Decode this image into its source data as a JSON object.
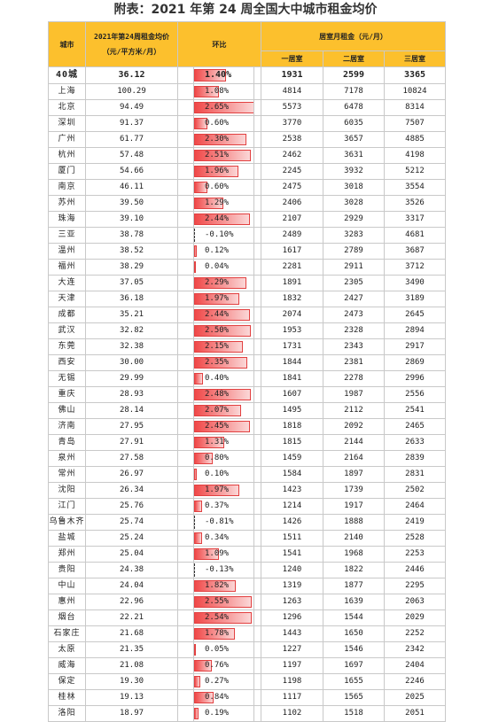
{
  "title": "附表：2021 年第 24 周全国大中城市租金均价",
  "header": {
    "city": "城市",
    "avg_line1": "2021年第24周租金均价",
    "avg_line2": "（元/平方米/月）",
    "change": "环比",
    "room_rent": "居室月租金（元/月）",
    "one_room": "一居室",
    "two_room": "二居室",
    "three_room": "三居室"
  },
  "colors": {
    "header_bg": "#fcc02d",
    "positive_bar": "#f04848",
    "negative_bar": "#f0b000",
    "grid": "#c9c9c9"
  },
  "summary": {
    "city": "40城",
    "avg": "36.12",
    "change": "1.40%",
    "change_value": 1.4,
    "one": "1931",
    "two": "2599",
    "three": "3365"
  },
  "rows": [
    {
      "city": "上海",
      "avg": "100.29",
      "change": "1.08%",
      "change_value": 1.08,
      "one": "4814",
      "two": "7178",
      "three": "10824"
    },
    {
      "city": "北京",
      "avg": "94.49",
      "change": "2.65%",
      "change_value": 2.65,
      "one": "5573",
      "two": "6478",
      "three": "8314"
    },
    {
      "city": "深圳",
      "avg": "91.37",
      "change": "0.60%",
      "change_value": 0.6,
      "one": "3770",
      "two": "6035",
      "three": "7507"
    },
    {
      "city": "广州",
      "avg": "61.77",
      "change": "2.30%",
      "change_value": 2.3,
      "one": "2538",
      "two": "3657",
      "three": "4885"
    },
    {
      "city": "杭州",
      "avg": "57.48",
      "change": "2.51%",
      "change_value": 2.51,
      "one": "2462",
      "two": "3631",
      "three": "4198"
    },
    {
      "city": "厦门",
      "avg": "54.66",
      "change": "1.96%",
      "change_value": 1.96,
      "one": "2245",
      "two": "3932",
      "three": "5212"
    },
    {
      "city": "南京",
      "avg": "46.11",
      "change": "0.60%",
      "change_value": 0.6,
      "one": "2475",
      "two": "3018",
      "three": "3554"
    },
    {
      "city": "苏州",
      "avg": "39.50",
      "change": "1.29%",
      "change_value": 1.29,
      "one": "2406",
      "two": "3028",
      "three": "3526"
    },
    {
      "city": "珠海",
      "avg": "39.10",
      "change": "2.44%",
      "change_value": 2.44,
      "one": "2107",
      "two": "2929",
      "three": "3317"
    },
    {
      "city": "三亚",
      "avg": "38.78",
      "change": "-0.10%",
      "change_value": -0.1,
      "one": "2489",
      "two": "3283",
      "three": "4681"
    },
    {
      "city": "温州",
      "avg": "38.52",
      "change": "0.12%",
      "change_value": 0.12,
      "one": "1617",
      "two": "2789",
      "three": "3687"
    },
    {
      "city": "福州",
      "avg": "38.29",
      "change": "0.04%",
      "change_value": 0.04,
      "one": "2281",
      "two": "2911",
      "three": "3712"
    },
    {
      "city": "大连",
      "avg": "37.05",
      "change": "2.29%",
      "change_value": 2.29,
      "one": "1891",
      "two": "2305",
      "three": "3490"
    },
    {
      "city": "天津",
      "avg": "36.18",
      "change": "1.97%",
      "change_value": 1.97,
      "one": "1832",
      "two": "2427",
      "three": "3189"
    },
    {
      "city": "成都",
      "avg": "35.21",
      "change": "2.44%",
      "change_value": 2.44,
      "one": "2074",
      "two": "2473",
      "three": "2645"
    },
    {
      "city": "武汉",
      "avg": "32.82",
      "change": "2.50%",
      "change_value": 2.5,
      "one": "1953",
      "two": "2328",
      "three": "2894"
    },
    {
      "city": "东莞",
      "avg": "32.38",
      "change": "2.15%",
      "change_value": 2.15,
      "one": "1731",
      "two": "2343",
      "three": "2917"
    },
    {
      "city": "西安",
      "avg": "30.00",
      "change": "2.35%",
      "change_value": 2.35,
      "one": "1844",
      "two": "2381",
      "three": "2869"
    },
    {
      "city": "无锡",
      "avg": "29.99",
      "change": "0.40%",
      "change_value": 0.4,
      "one": "1841",
      "two": "2278",
      "three": "2996"
    },
    {
      "city": "重庆",
      "avg": "28.93",
      "change": "2.48%",
      "change_value": 2.48,
      "one": "1607",
      "two": "1987",
      "three": "2556"
    },
    {
      "city": "佛山",
      "avg": "28.14",
      "change": "2.07%",
      "change_value": 2.07,
      "one": "1495",
      "two": "2112",
      "three": "2541"
    },
    {
      "city": "济南",
      "avg": "27.95",
      "change": "2.45%",
      "change_value": 2.45,
      "one": "1818",
      "two": "2092",
      "three": "2465"
    },
    {
      "city": "青岛",
      "avg": "27.91",
      "change": "1.31%",
      "change_value": 1.31,
      "one": "1815",
      "two": "2144",
      "three": "2633"
    },
    {
      "city": "泉州",
      "avg": "27.58",
      "change": "0.80%",
      "change_value": 0.8,
      "one": "1459",
      "two": "2164",
      "three": "2839"
    },
    {
      "city": "常州",
      "avg": "26.97",
      "change": "0.10%",
      "change_value": 0.1,
      "one": "1584",
      "two": "1897",
      "three": "2831"
    },
    {
      "city": "沈阳",
      "avg": "26.34",
      "change": "1.97%",
      "change_value": 1.97,
      "one": "1423",
      "two": "1739",
      "three": "2502"
    },
    {
      "city": "江门",
      "avg": "25.76",
      "change": "0.37%",
      "change_value": 0.37,
      "one": "1214",
      "two": "1917",
      "three": "2464"
    },
    {
      "city": "乌鲁木齐",
      "avg": "25.74",
      "change": "-0.81%",
      "change_value": -0.81,
      "one": "1426",
      "two": "1888",
      "three": "2419"
    },
    {
      "city": "盐城",
      "avg": "25.24",
      "change": "0.34%",
      "change_value": 0.34,
      "one": "1511",
      "two": "2140",
      "three": "2528"
    },
    {
      "city": "郑州",
      "avg": "25.04",
      "change": "1.09%",
      "change_value": 1.09,
      "one": "1541",
      "two": "1968",
      "three": "2253"
    },
    {
      "city": "贵阳",
      "avg": "24.38",
      "change": "-0.13%",
      "change_value": -0.13,
      "one": "1240",
      "two": "1822",
      "three": "2446"
    },
    {
      "city": "中山",
      "avg": "24.04",
      "change": "1.82%",
      "change_value": 1.82,
      "one": "1319",
      "two": "1877",
      "three": "2295"
    },
    {
      "city": "惠州",
      "avg": "22.96",
      "change": "2.55%",
      "change_value": 2.55,
      "one": "1263",
      "two": "1639",
      "three": "2063"
    },
    {
      "city": "烟台",
      "avg": "22.21",
      "change": "2.54%",
      "change_value": 2.54,
      "one": "1296",
      "two": "1544",
      "three": "2029"
    },
    {
      "city": "石家庄",
      "avg": "21.68",
      "change": "1.78%",
      "change_value": 1.78,
      "one": "1443",
      "two": "1650",
      "three": "2252"
    },
    {
      "city": "太原",
      "avg": "21.35",
      "change": "0.05%",
      "change_value": 0.05,
      "one": "1227",
      "two": "1546",
      "three": "2342"
    },
    {
      "city": "威海",
      "avg": "21.08",
      "change": "0.76%",
      "change_value": 0.76,
      "one": "1197",
      "two": "1697",
      "three": "2404"
    },
    {
      "city": "保定",
      "avg": "19.30",
      "change": "0.27%",
      "change_value": 0.27,
      "one": "1198",
      "two": "1655",
      "three": "2246"
    },
    {
      "city": "桂林",
      "avg": "19.13",
      "change": "0.84%",
      "change_value": 0.84,
      "one": "1117",
      "two": "1565",
      "three": "2025"
    },
    {
      "city": "洛阳",
      "avg": "18.97",
      "change": "0.19%",
      "change_value": 0.19,
      "one": "1102",
      "two": "1518",
      "three": "2051"
    }
  ]
}
